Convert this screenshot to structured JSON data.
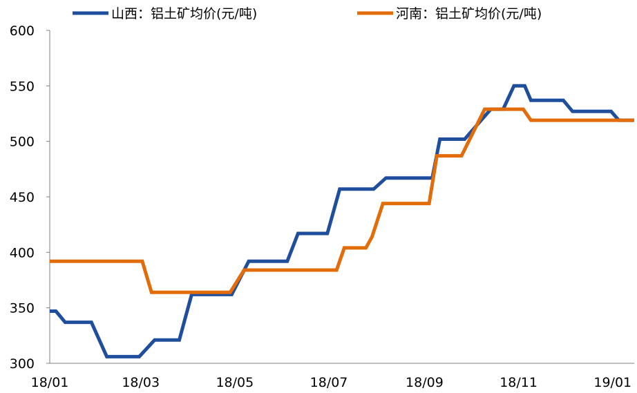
{
  "chart_data": {
    "type": "line",
    "title": "",
    "xlabel": "",
    "ylabel": "",
    "ylim": [
      300,
      600
    ],
    "yticks": [
      300,
      350,
      400,
      450,
      500,
      550,
      600
    ],
    "xticks": [
      "18/01",
      "18/03",
      "18/05",
      "18/07",
      "18/09",
      "18/11",
      "19/01"
    ],
    "grid": false,
    "legend": "top",
    "series": [
      {
        "name": "山西：铝土矿均价(元/吨)",
        "color": "#1F4E9D",
        "points": [
          {
            "x": "2018-01-01",
            "y": 347
          },
          {
            "x": "2018-01-05",
            "y": 347
          },
          {
            "x": "2018-01-11",
            "y": 337
          },
          {
            "x": "2018-01-28",
            "y": 337
          },
          {
            "x": "2018-02-07",
            "y": 306
          },
          {
            "x": "2018-02-28",
            "y": 306
          },
          {
            "x": "2018-03-10",
            "y": 321
          },
          {
            "x": "2018-03-26",
            "y": 321
          },
          {
            "x": "2018-04-03",
            "y": 362
          },
          {
            "x": "2018-04-29",
            "y": 362
          },
          {
            "x": "2018-05-10",
            "y": 392
          },
          {
            "x": "2018-06-04",
            "y": 392
          },
          {
            "x": "2018-06-11",
            "y": 417
          },
          {
            "x": "2018-06-30",
            "y": 417
          },
          {
            "x": "2018-07-08",
            "y": 457
          },
          {
            "x": "2018-07-30",
            "y": 457
          },
          {
            "x": "2018-08-07",
            "y": 467
          },
          {
            "x": "2018-09-06",
            "y": 467
          },
          {
            "x": "2018-09-11",
            "y": 502
          },
          {
            "x": "2018-09-27",
            "y": 502
          },
          {
            "x": "2018-10-14",
            "y": 529
          },
          {
            "x": "2018-10-22",
            "y": 529
          },
          {
            "x": "2018-10-29",
            "y": 550
          },
          {
            "x": "2018-11-05",
            "y": 550
          },
          {
            "x": "2018-11-09",
            "y": 537
          },
          {
            "x": "2018-11-30",
            "y": 537
          },
          {
            "x": "2018-12-06",
            "y": 527
          },
          {
            "x": "2018-12-31",
            "y": 527
          },
          {
            "x": "2019-01-05",
            "y": 519
          },
          {
            "x": "2019-01-15",
            "y": 519
          }
        ]
      },
      {
        "name": "河南：铝土矿均价(元/吨)",
        "color": "#E36C0A",
        "points": [
          {
            "x": "2018-01-01",
            "y": 392
          },
          {
            "x": "2018-03-02",
            "y": 392
          },
          {
            "x": "2018-03-08",
            "y": 364
          },
          {
            "x": "2018-04-28",
            "y": 364
          },
          {
            "x": "2018-05-07",
            "y": 384
          },
          {
            "x": "2018-07-06",
            "y": 384
          },
          {
            "x": "2018-07-11",
            "y": 404
          },
          {
            "x": "2018-07-25",
            "y": 404
          },
          {
            "x": "2018-07-29",
            "y": 414
          },
          {
            "x": "2018-08-05",
            "y": 444
          },
          {
            "x": "2018-09-04",
            "y": 444
          },
          {
            "x": "2018-09-09",
            "y": 487
          },
          {
            "x": "2018-09-25",
            "y": 487
          },
          {
            "x": "2018-10-10",
            "y": 529
          },
          {
            "x": "2018-11-04",
            "y": 529
          },
          {
            "x": "2018-11-09",
            "y": 519
          },
          {
            "x": "2019-01-15",
            "y": 519
          }
        ]
      }
    ]
  }
}
